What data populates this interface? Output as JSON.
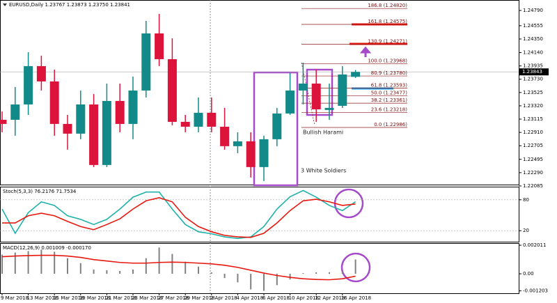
{
  "chart_data": [
    {
      "type": "candlestick",
      "title": "EURUSD,Daily 1.23767 1.23873 1.23750 1.23841",
      "categories": [
        "9 Mar 2018",
        null,
        "13 Mar 2018",
        null,
        "15 Mar 2018",
        null,
        "19 Mar 2018",
        null,
        "21 Mar 2018",
        null,
        "23 Mar 2018",
        null,
        "27 Mar 2018",
        null,
        "29 Mar 2018",
        null,
        "2 Apr 2018",
        null,
        "4 Apr 2018",
        null,
        "6 Apr 2018",
        null,
        "10 Apr 2018",
        null,
        "12 Apr 2018",
        null,
        "16 Apr 2018",
        null
      ],
      "open": [
        1.23105,
        1.23105,
        1.23341,
        1.23932,
        1.23696,
        1.23041,
        1.22891,
        1.23341,
        1.22408,
        1.23395,
        1.23041,
        1.23556,
        1.24436,
        1.24039,
        1.23073,
        1.22998,
        1.23213,
        1.22998,
        1.22698,
        1.22773,
        1.22376,
        1.22805,
        1.23202,
        1.23556,
        1.23663,
        1.23256,
        1.2332,
        1.23767
      ],
      "high": [
        1.23234,
        1.2361,
        1.24146,
        1.24093,
        1.23878,
        1.2318,
        1.23556,
        1.23502,
        1.23663,
        1.23663,
        1.23771,
        1.24629,
        1.24736,
        1.24361,
        1.2318,
        1.23449,
        1.23449,
        1.23288,
        1.22912,
        1.22912,
        1.22859,
        1.23288,
        1.23824,
        1.23985,
        1.23878,
        1.23663,
        1.23932,
        1.23873
      ],
      "low": [
        1.22912,
        1.22859,
        1.2318,
        1.23556,
        1.22859,
        1.22644,
        1.22805,
        1.22376,
        1.22376,
        1.22912,
        1.22805,
        1.23449,
        1.23932,
        1.2302,
        1.22912,
        1.22912,
        1.22912,
        1.22644,
        1.2259,
        1.22215,
        1.22161,
        1.22698,
        1.2318,
        1.23341,
        1.23073,
        1.23105,
        1.23288,
        1.2375
      ],
      "close": [
        1.23041,
        1.23341,
        1.23932,
        1.23696,
        1.23041,
        1.22891,
        1.23341,
        1.22408,
        1.23395,
        1.23041,
        1.23556,
        1.24436,
        1.24039,
        1.23073,
        1.22998,
        1.23213,
        1.22998,
        1.22698,
        1.22773,
        1.22376,
        1.22805,
        1.23202,
        1.23556,
        1.23663,
        1.23266,
        1.23288,
        1.23803,
        1.23841
      ],
      "up_color": "#138a8a",
      "down_color": "#dc143c",
      "ylim": [
        1.22106,
        1.24951
      ],
      "yticks": [
        {
          "value": 1.2479,
          "label": "1.24790"
        },
        {
          "value": 1.24555,
          "label": "1.24555"
        },
        {
          "value": 1.2435,
          "label": "1.24350"
        },
        {
          "value": 1.2414,
          "label": "1.24140"
        },
        {
          "value": 1.23935,
          "label": "1.23935"
        },
        {
          "value": 1.2373,
          "label": "1.23730"
        },
        {
          "value": 1.23525,
          "label": "1.23525"
        },
        {
          "value": 1.2332,
          "label": "1.23320"
        },
        {
          "value": 1.23115,
          "label": "1.23115"
        },
        {
          "value": 1.2291,
          "label": "1.22910"
        },
        {
          "value": 1.22705,
          "label": "1.22705"
        },
        {
          "value": 1.22495,
          "label": "1.22495"
        },
        {
          "value": 1.2229,
          "label": "1.22290"
        },
        {
          "value": 1.22085,
          "label": "1.22085"
        }
      ],
      "current_price": {
        "value": 1.23843,
        "label": "1.23843"
      },
      "fib_levels": [
        {
          "value": 1.2482,
          "label": "186.8 (1.24820)"
        },
        {
          "value": 1.24575,
          "label": "161.8 (1.24575)"
        },
        {
          "value": 1.24271,
          "label": "130.9 (1.24271)"
        },
        {
          "value": 1.23968,
          "label": "100.0 (1.23968)"
        },
        {
          "value": 1.2378,
          "label": "80.9 (1.23780)"
        },
        {
          "value": 1.23593,
          "label": "61.8 (1.23593)"
        },
        {
          "value": 1.23477,
          "label": "50.0 (1.23477)"
        },
        {
          "value": 1.23361,
          "label": "38.2 (1.23361)"
        },
        {
          "value": 1.23218,
          "label": "23.6 (1.23218)"
        },
        {
          "value": 1.22986,
          "label": "0.0 (1.22986)"
        }
      ],
      "annotations": [
        "Bullish Harami",
        "3 White Soldiers"
      ]
    },
    {
      "type": "line",
      "title": "Stoch(5,3,3) 76.2176 71.7534",
      "ylim": [
        0,
        100
      ],
      "yticks": [
        80,
        20
      ],
      "series": [
        {
          "color": "#20b2aa",
          "values": [
            62,
            15,
            55,
            76,
            69,
            49,
            42,
            32,
            42,
            62,
            85,
            95,
            95,
            62,
            32,
            18,
            14,
            8,
            5,
            8,
            28,
            62,
            86,
            98,
            85,
            69,
            59,
            76.2176
          ]
        },
        {
          "color": "#e8170f",
          "values": [
            35,
            35,
            49,
            54,
            49,
            38,
            28,
            22,
            32,
            43,
            62,
            78,
            84,
            76,
            46,
            28,
            18,
            11,
            8,
            7,
            15,
            35,
            59,
            78,
            81,
            76,
            69,
            71.7534
          ]
        }
      ]
    },
    {
      "type": "macd",
      "title": "MACD(12,26,9) 0.001009 -0.000170",
      "ylim": [
        -0.00137,
        0.00216
      ],
      "yticks": [
        0.002011,
        {
          "value": 0,
          "label": "0.00"
        },
        -0.001203
      ],
      "series": [
        {
          "kind": "bar",
          "color": "#808080",
          "values": [
            0.00135,
            0.0015,
            0.0016,
            0.0017,
            0.00155,
            0.0011,
            0.00075,
            0.0003,
            0.00025,
            0.0002,
            0.0003,
            0.0011,
            0.00185,
            0.0014,
            0.00085,
            0.0005,
            0.0001,
            -0.0003,
            -0.0006,
            -0.0011,
            -0.0012,
            -0.0008,
            -0.0004,
            5e-05,
            0.0001,
            0.0001,
            0.00015,
            0.001009
          ]
        },
        {
          "kind": "line",
          "color": "#e8170f",
          "values": [
            0.0012,
            0.00125,
            0.00128,
            0.0013,
            0.0013,
            0.00125,
            0.00115,
            0.001,
            0.0009,
            0.0008,
            0.00075,
            0.00075,
            0.0008,
            0.00082,
            0.0008,
            0.00075,
            0.0007,
            0.0006,
            0.00045,
            0.00025,
            5e-05,
            -0.00012,
            -0.00025,
            -0.00035,
            -0.0004,
            -0.00042,
            -0.00035,
            -0.00017
          ]
        }
      ]
    }
  ]
}
